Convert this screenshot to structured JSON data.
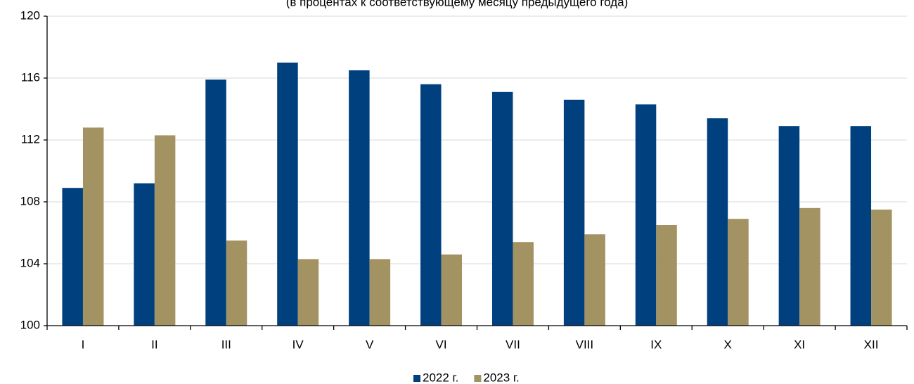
{
  "chart_data": {
    "type": "bar",
    "subtitle": "(в процентах к соответствующему месяцу предыдущего года)",
    "categories": [
      "I",
      "II",
      "III",
      "IV",
      "V",
      "VI",
      "VII",
      "VIII",
      "IX",
      "X",
      "XI",
      "XII"
    ],
    "series": [
      {
        "name": "2022 г.",
        "color": "#00407f",
        "values": [
          108.9,
          109.2,
          115.9,
          117.0,
          116.5,
          115.6,
          115.1,
          114.6,
          114.3,
          113.4,
          112.9,
          112.9
        ]
      },
      {
        "name": "2023 г.",
        "color": "#a39262",
        "values": [
          112.8,
          112.3,
          105.5,
          104.3,
          104.3,
          104.6,
          105.4,
          105.9,
          106.5,
          106.9,
          107.6,
          107.5
        ]
      }
    ],
    "ylim": [
      100,
      120
    ],
    "yticks": [
      100,
      104,
      108,
      112,
      116,
      120
    ],
    "grid": true,
    "legend": "bottom"
  }
}
